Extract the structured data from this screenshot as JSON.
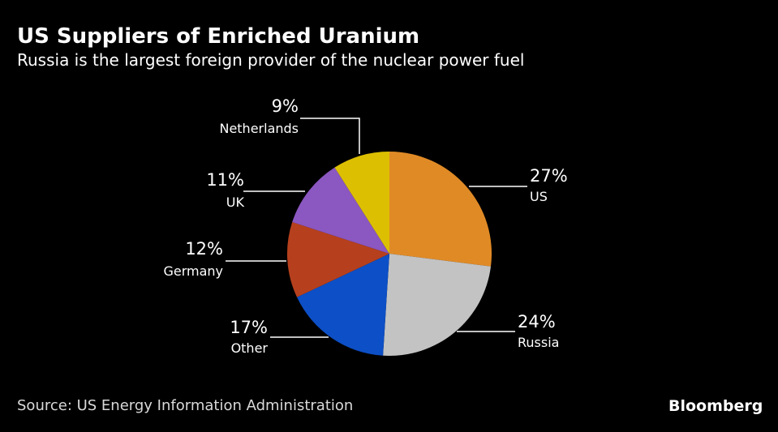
{
  "title": "US Suppliers of Enriched Uranium",
  "subtitle": "Russia is the largest foreign provider of the nuclear power fuel",
  "source": "Source: US Energy Information Administration",
  "brand": "Bloomberg",
  "chart_data": {
    "type": "pie",
    "title": "US Suppliers of Enriched Uranium",
    "subtitle": "Russia is the largest foreign provider of the nuclear power fuel",
    "slices": [
      {
        "label": "US",
        "value": 27,
        "display": "27%",
        "color": "#e08a26"
      },
      {
        "label": "Russia",
        "value": 24,
        "display": "24%",
        "color": "#c3c3c3"
      },
      {
        "label": "Other",
        "value": 17,
        "display": "17%",
        "color": "#0d4fc6"
      },
      {
        "label": "Germany",
        "value": 12,
        "display": "12%",
        "color": "#b6401d"
      },
      {
        "label": "UK",
        "value": 11,
        "display": "11%",
        "color": "#8b57c0"
      },
      {
        "label": "Netherlands",
        "value": 9,
        "display": "9%",
        "color": "#dcbf00"
      }
    ],
    "start": "12 o'clock",
    "direction": "clockwise",
    "legend": "none (leader-line labels)"
  }
}
